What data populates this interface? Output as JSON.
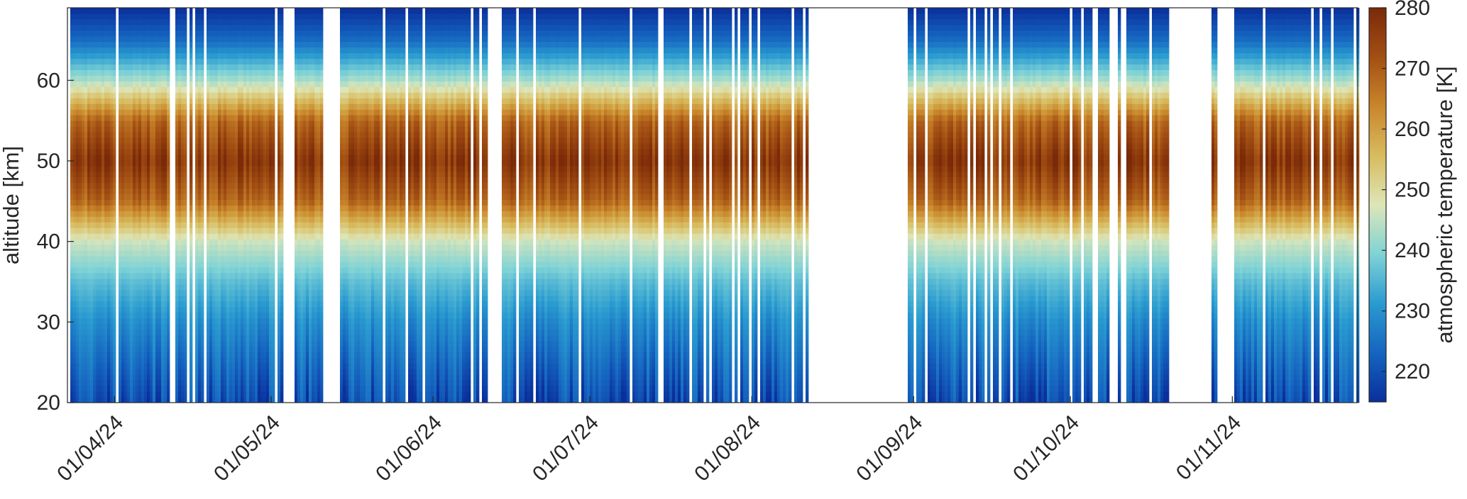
{
  "chart_data": {
    "type": "heatmap",
    "title": "",
    "xlabel": "",
    "ylabel": "altitude [km]",
    "colorbar_label": "atmospheric temperature [K]",
    "x_range": [
      "2024-03-23",
      "2024-11-25"
    ],
    "ylim": [
      20,
      69
    ],
    "clim": [
      215,
      280
    ],
    "colormap": "blue-cyan-yellow-brown (cmocean balance-like)",
    "x_ticks": [
      "2024-04-01",
      "2024-05-01",
      "2024-06-01",
      "2024-07-01",
      "2024-08-01",
      "2024-09-01",
      "2024-10-01",
      "2024-11-01"
    ],
    "x_tick_labels": [
      "01/04/24",
      "01/05/24",
      "01/06/24",
      "01/07/24",
      "01/08/24",
      "01/09/24",
      "01/10/24",
      "01/11/24"
    ],
    "y_ticks": [
      20,
      30,
      40,
      50,
      60
    ],
    "y_tick_labels": [
      "20",
      "30",
      "40",
      "50",
      "60"
    ],
    "colorbar_ticks": [
      220,
      230,
      240,
      250,
      260,
      270,
      280
    ],
    "colorbar_tick_labels": [
      "220",
      "230",
      "240",
      "250",
      "260",
      "270",
      "280"
    ],
    "data_gaps": [
      [
        "2024-05-11",
        "2024-05-14"
      ],
      [
        "2024-06-13",
        "2024-06-14"
      ],
      [
        "2024-07-14",
        "2024-07-15"
      ],
      [
        "2024-08-12",
        "2024-08-31"
      ],
      [
        "2024-10-20",
        "2024-10-28"
      ],
      [
        "2024-10-29",
        "2024-11-01"
      ]
    ],
    "temperature_profile": {
      "altitude_km": [
        20,
        25,
        30,
        35,
        40,
        45,
        50,
        55,
        60,
        65,
        69
      ],
      "temperature_K": [
        219,
        224,
        229,
        236,
        246,
        268,
        277,
        268,
        243,
        224,
        215
      ]
    },
    "grid": false
  },
  "colors": {
    "colormap_stops": [
      "#0a2f9c",
      "#1565c0",
      "#2a9bd0",
      "#7fd3d6",
      "#dde6b8",
      "#d8bb5e",
      "#c9862a",
      "#a34f13",
      "#7a2a08"
    ],
    "axis": "#262626",
    "background": "#ffffff"
  }
}
